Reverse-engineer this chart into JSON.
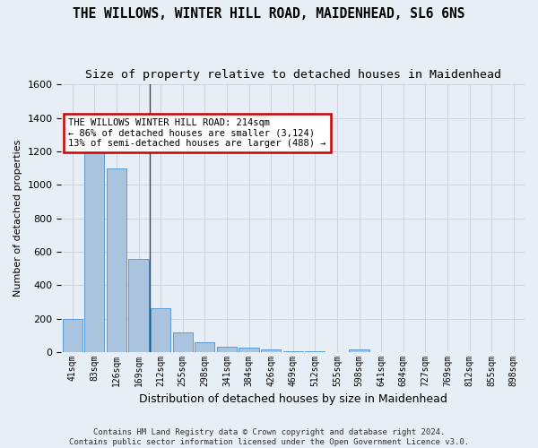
{
  "title": "THE WILLOWS, WINTER HILL ROAD, MAIDENHEAD, SL6 6NS",
  "subtitle": "Size of property relative to detached houses in Maidenhead",
  "xlabel": "Distribution of detached houses by size in Maidenhead",
  "ylabel": "Number of detached properties",
  "bin_labels": [
    "41sqm",
    "83sqm",
    "126sqm",
    "169sqm",
    "212sqm",
    "255sqm",
    "298sqm",
    "341sqm",
    "384sqm",
    "426sqm",
    "469sqm",
    "512sqm",
    "555sqm",
    "598sqm",
    "641sqm",
    "684sqm",
    "727sqm",
    "769sqm",
    "812sqm",
    "855sqm",
    "898sqm"
  ],
  "bar_heights": [
    200,
    1270,
    1100,
    560,
    265,
    120,
    60,
    35,
    25,
    15,
    5,
    5,
    0,
    15,
    0,
    0,
    0,
    0,
    0,
    0,
    0
  ],
  "bar_color": "#aac4e0",
  "bar_edge_color": "#5b9bd5",
  "grid_color": "#c8d0dc",
  "background_color": "#e8eef5",
  "vline_bin": 4,
  "vline_color": "#444444",
  "annotation_line1": "THE WILLOWS WINTER HILL ROAD: 214sqm",
  "annotation_line2": "← 86% of detached houses are smaller (3,124)",
  "annotation_line3": "13% of semi-detached houses are larger (488) →",
  "annotation_box_color": "#ffffff",
  "annotation_box_edge": "#cc0000",
  "ylim": [
    0,
    1600
  ],
  "yticks": [
    0,
    200,
    400,
    600,
    800,
    1000,
    1200,
    1400,
    1600
  ],
  "footer1": "Contains HM Land Registry data © Crown copyright and database right 2024.",
  "footer2": "Contains public sector information licensed under the Open Government Licence v3.0.",
  "title_fontsize": 10.5,
  "subtitle_fontsize": 9.5,
  "ylabel_fontsize": 8,
  "xlabel_fontsize": 9,
  "tick_fontsize": 7,
  "annotation_fontsize": 7.5,
  "footer_fontsize": 6.5
}
